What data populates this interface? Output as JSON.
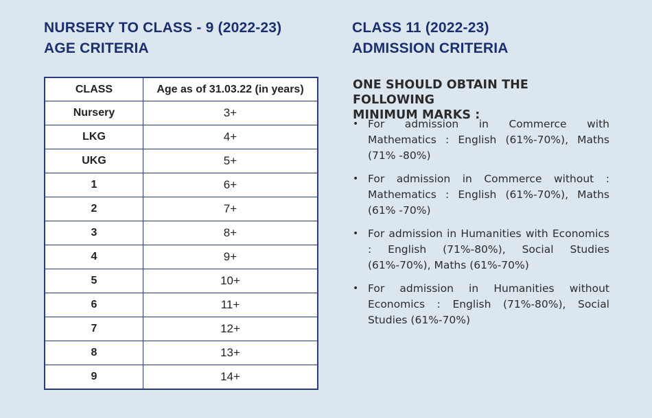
{
  "left_heading": {
    "line1": "NURSERY TO CLASS - 9 (2022-23)",
    "line2": "AGE CRITERIA"
  },
  "right_heading": {
    "line1": "CLASS 11 (2022-23)",
    "line2": "ADMISSION CRITERIA"
  },
  "age_table": {
    "headers": [
      "CLASS",
      "Age as of 31.03.22 (in years)"
    ],
    "rows": [
      [
        "Nursery",
        "3+"
      ],
      [
        "LKG",
        "4+"
      ],
      [
        "UKG",
        "5+"
      ],
      [
        "1",
        "6+"
      ],
      [
        "2",
        "7+"
      ],
      [
        "3",
        "8+"
      ],
      [
        "4",
        "9+"
      ],
      [
        "5",
        "10+"
      ],
      [
        "6",
        "11+"
      ],
      [
        "7",
        "12+"
      ],
      [
        "8",
        "13+"
      ],
      [
        "9",
        "14+"
      ]
    ]
  },
  "admission": {
    "title_line1": "ONE SHOULD OBTAIN THE FOLLOWING",
    "title_line2": "MINIMUM MARKS :",
    "bullet": "•",
    "items": [
      "For admission in Commerce with Mathematics : English (61%-70%), Maths (71% -80%)",
      "For admission in Commerce without : Mathematics : English (61%-70%), Maths (61% -70%)",
      "For admission in Humanities with Economics : English (71%-80%), Social Studies (61%-70%), Maths (61%-70%)",
      "For admission in Humanities without Economics : English (71%-80%), Social Studies (61%-70%)"
    ]
  }
}
